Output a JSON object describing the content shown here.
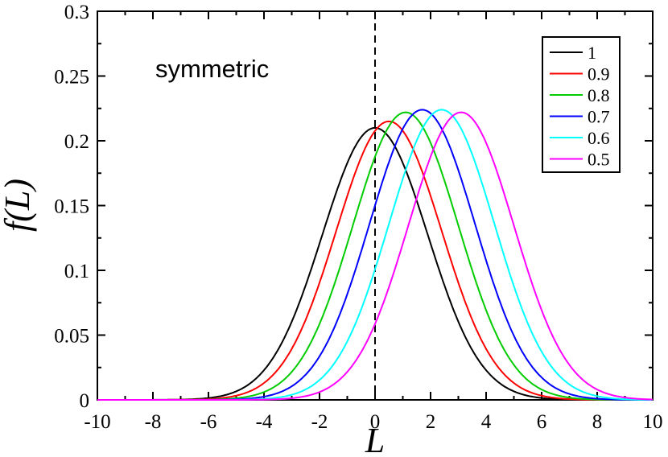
{
  "chart_data": {
    "type": "line",
    "title": "",
    "xlabel": "L",
    "ylabel": "f(L)",
    "xlim": [
      -10,
      10
    ],
    "ylim": [
      0,
      0.3
    ],
    "x_ticks": [
      -10,
      -8,
      -6,
      -4,
      -2,
      0,
      2,
      4,
      6,
      8,
      10
    ],
    "x_tick_labels": [
      "-10",
      "-8",
      "-6",
      "-4",
      "-2",
      "0",
      "2",
      "4",
      "6",
      "8",
      "10"
    ],
    "y_ticks": [
      0,
      0.05,
      0.1,
      0.15,
      0.2,
      0.25,
      0.3
    ],
    "y_tick_labels": [
      "0",
      "0.05",
      "0.1",
      "0.15",
      "0.2",
      "0.25",
      "0.3"
    ],
    "annotation": "symmetric",
    "reference_line": {
      "x": 0,
      "style": "dashed",
      "color": "#000000"
    },
    "grid": false,
    "legend_position": "top-right",
    "series": [
      {
        "name": "1",
        "color": "#000000",
        "peak_x": 0.0,
        "peak_y": 0.21,
        "x": [
          -10,
          -8,
          -6,
          -5,
          -4,
          -3,
          -2,
          -1,
          0,
          1,
          2,
          3,
          4,
          5,
          6,
          8,
          10
        ],
        "y": [
          0,
          0.0005,
          0.003,
          0.009,
          0.025,
          0.058,
          0.11,
          0.17,
          0.21,
          0.17,
          0.11,
          0.058,
          0.025,
          0.009,
          0.003,
          0.0005,
          0
        ]
      },
      {
        "name": "0.9",
        "color": "#ff0000",
        "peak_x": 0.5,
        "peak_y": 0.215,
        "x": [
          -10,
          -8,
          -6,
          -4.5,
          -3.5,
          -2.5,
          -1.5,
          -0.5,
          0.5,
          1.5,
          2.5,
          3.5,
          4.5,
          5.5,
          6.5,
          8,
          10
        ],
        "y": [
          0,
          0.0003,
          0.002,
          0.009,
          0.025,
          0.059,
          0.112,
          0.174,
          0.215,
          0.174,
          0.112,
          0.059,
          0.025,
          0.009,
          0.002,
          0.0003,
          0
        ]
      },
      {
        "name": "0.8",
        "color": "#00cc00",
        "peak_x": 1.1,
        "peak_y": 0.222,
        "x": [
          -10,
          -8,
          -6,
          -3.9,
          -2.9,
          -1.9,
          -0.9,
          0.1,
          1.1,
          2.1,
          3.1,
          4.1,
          5.1,
          6.1,
          7.1,
          8.5,
          10
        ],
        "y": [
          0,
          0.0001,
          0.001,
          0.009,
          0.026,
          0.061,
          0.116,
          0.18,
          0.222,
          0.18,
          0.116,
          0.061,
          0.026,
          0.009,
          0.002,
          0.0003,
          0
        ]
      },
      {
        "name": "0.7",
        "color": "#0000ff",
        "peak_x": 1.7,
        "peak_y": 0.224,
        "x": [
          -10,
          -8,
          -6,
          -3.3,
          -2.3,
          -1.3,
          -0.3,
          0.7,
          1.7,
          2.7,
          3.7,
          4.7,
          5.7,
          6.7,
          7.7,
          9,
          10
        ],
        "y": [
          0,
          0,
          0.0005,
          0.009,
          0.026,
          0.062,
          0.117,
          0.182,
          0.224,
          0.182,
          0.117,
          0.062,
          0.026,
          0.009,
          0.002,
          0.0003,
          0
        ]
      },
      {
        "name": "0.6",
        "color": "#00ffff",
        "peak_x": 2.4,
        "peak_y": 0.224,
        "x": [
          -10,
          -8,
          -6,
          -2.6,
          -1.6,
          -0.6,
          0.4,
          1.4,
          2.4,
          3.4,
          4.4,
          5.4,
          6.4,
          7.4,
          8.4,
          9.5,
          10
        ],
        "y": [
          0,
          0,
          0.0002,
          0.009,
          0.026,
          0.062,
          0.117,
          0.182,
          0.224,
          0.182,
          0.117,
          0.062,
          0.026,
          0.009,
          0.002,
          0.0003,
          0
        ]
      },
      {
        "name": "0.5",
        "color": "#ff00ff",
        "peak_x": 3.1,
        "peak_y": 0.222,
        "x": [
          -10,
          -8,
          -6,
          -1.9,
          -0.9,
          0.1,
          1.1,
          2.1,
          3.1,
          4.1,
          5.1,
          6.1,
          7.1,
          8.1,
          9.1,
          10
        ],
        "y": [
          0,
          0,
          0.0001,
          0.009,
          0.026,
          0.061,
          0.116,
          0.18,
          0.222,
          0.18,
          0.116,
          0.061,
          0.026,
          0.009,
          0.002,
          0.0005
        ]
      }
    ]
  }
}
